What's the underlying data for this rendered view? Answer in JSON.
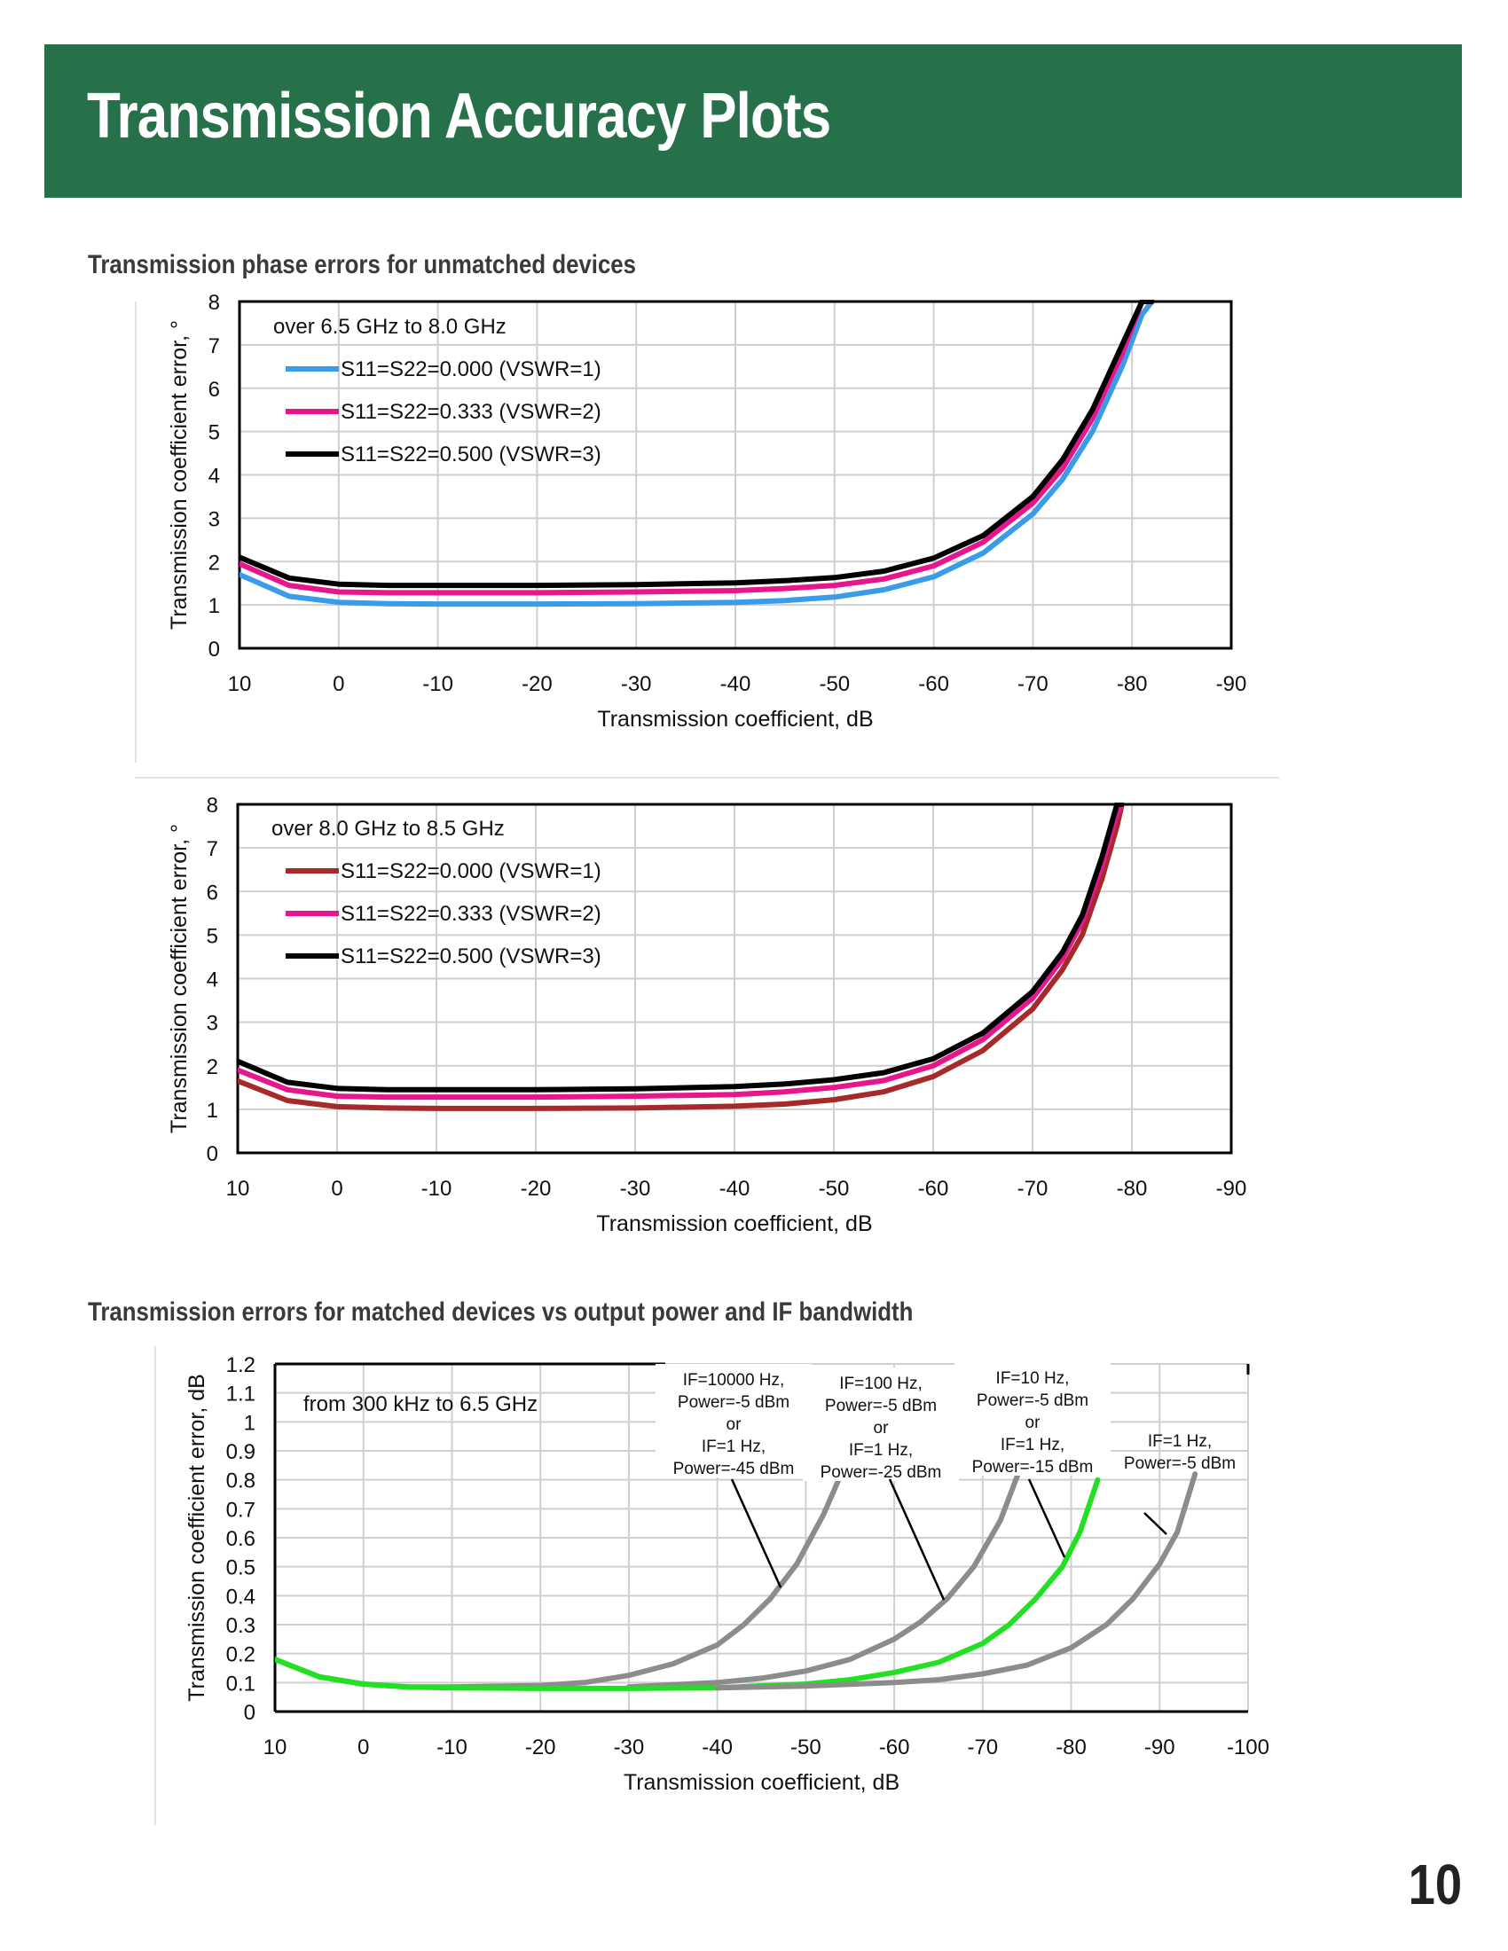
{
  "page": {
    "title": "Transmission Accuracy Plots",
    "page_number": "10",
    "section1_title": "Transmission phase errors for unmatched devices",
    "section2_title": "Transmission errors for matched devices vs output power and IF bandwidth"
  },
  "colors": {
    "header_green": "#26704a",
    "blue": "#3a9be8",
    "magenta": "#e8168c",
    "black": "#000000",
    "dark_red": "#a52a2a",
    "gray": "#8c8c8c",
    "green": "#22e022"
  },
  "chart_data": [
    {
      "type": "line",
      "annotation": "over 6.5 GHz to 8.0 GHz",
      "xlabel": "Transmission coefficient, dB",
      "ylabel": "Transmission coefficient error, °",
      "xlim": [
        10,
        -90
      ],
      "ylim": [
        0,
        8
      ],
      "xticks": [
        "10",
        "0",
        "-10",
        "-20",
        "-30",
        "-40",
        "-50",
        "-60",
        "-70",
        "-80",
        "-90"
      ],
      "yticks": [
        "0",
        "1",
        "2",
        "3",
        "4",
        "5",
        "6",
        "7",
        "8"
      ],
      "grid": true,
      "legend_position": "top-left",
      "x": [
        10,
        5,
        0,
        -5,
        -10,
        -20,
        -30,
        -40,
        -45,
        -50,
        -55,
        -60,
        -65,
        -70,
        -73,
        -76,
        -79,
        -81,
        -82
      ],
      "series": [
        {
          "name": "S11=S22=0.000 (VSWR=1)",
          "color": "#3a9be8",
          "values": [
            1.7,
            1.2,
            1.06,
            1.03,
            1.02,
            1.02,
            1.03,
            1.06,
            1.1,
            1.18,
            1.35,
            1.65,
            2.2,
            3.1,
            3.9,
            5.0,
            6.5,
            7.7,
            8.0
          ]
        },
        {
          "name": "S11=S22=0.333 (VSWR=2)",
          "color": "#e8168c",
          "values": [
            1.95,
            1.45,
            1.3,
            1.28,
            1.28,
            1.28,
            1.3,
            1.33,
            1.38,
            1.45,
            1.6,
            1.9,
            2.45,
            3.35,
            4.15,
            5.3,
            6.8,
            8.0,
            8.0
          ]
        },
        {
          "name": "S11=S22=0.500 (VSWR=3)",
          "color": "#000000",
          "values": [
            2.1,
            1.62,
            1.48,
            1.45,
            1.45,
            1.45,
            1.47,
            1.51,
            1.56,
            1.63,
            1.78,
            2.08,
            2.6,
            3.5,
            4.35,
            5.5,
            7.0,
            8.0,
            8.0
          ]
        }
      ]
    },
    {
      "type": "line",
      "annotation": "over 8.0 GHz to 8.5 GHz",
      "xlabel": "Transmission coefficient, dB",
      "ylabel": "Transmission coefficient error, °",
      "xlim": [
        10,
        -90
      ],
      "ylim": [
        0,
        8
      ],
      "xticks": [
        "10",
        "0",
        "-10",
        "-20",
        "-30",
        "-40",
        "-50",
        "-60",
        "-70",
        "-80",
        "-90"
      ],
      "yticks": [
        "0",
        "1",
        "2",
        "3",
        "4",
        "5",
        "6",
        "7",
        "8"
      ],
      "grid": true,
      "legend_position": "top-left",
      "x": [
        10,
        5,
        0,
        -5,
        -10,
        -20,
        -30,
        -40,
        -45,
        -50,
        -55,
        -60,
        -65,
        -70,
        -73,
        -75,
        -77,
        -78.5,
        -79
      ],
      "series": [
        {
          "name": "S11=S22=0.000 (VSWR=1)",
          "color": "#a52a2a",
          "values": [
            1.65,
            1.2,
            1.06,
            1.03,
            1.02,
            1.02,
            1.03,
            1.07,
            1.12,
            1.22,
            1.4,
            1.75,
            2.35,
            3.3,
            4.2,
            5.0,
            6.3,
            7.5,
            8.0
          ]
        },
        {
          "name": "S11=S22=0.333 (VSWR=2)",
          "color": "#e8168c",
          "values": [
            1.9,
            1.45,
            1.3,
            1.28,
            1.28,
            1.28,
            1.3,
            1.34,
            1.4,
            1.5,
            1.66,
            2.0,
            2.6,
            3.55,
            4.45,
            5.3,
            6.6,
            7.8,
            8.0
          ]
        },
        {
          "name": "S11=S22=0.500 (VSWR=3)",
          "color": "#000000",
          "values": [
            2.1,
            1.62,
            1.48,
            1.45,
            1.45,
            1.45,
            1.47,
            1.52,
            1.58,
            1.68,
            1.84,
            2.16,
            2.75,
            3.7,
            4.6,
            5.45,
            6.8,
            8.0,
            8.0
          ]
        }
      ]
    },
    {
      "type": "line",
      "annotation": "from 300 kHz to 6.5 GHz",
      "xlabel": "Transmission coefficient, dB",
      "ylabel": "Transmission coefficient error, dB",
      "xlim": [
        10,
        -100
      ],
      "ylim": [
        0,
        1.2
      ],
      "xticks": [
        "10",
        "0",
        "-10",
        "-20",
        "-30",
        "-40",
        "-50",
        "-60",
        "-70",
        "-80",
        "-90",
        "-100"
      ],
      "yticks": [
        "0",
        "0.1",
        "0.2",
        "0.3",
        "0.4",
        "0.5",
        "0.6",
        "0.7",
        "0.8",
        "0.9",
        "1",
        "1.1",
        "1.2"
      ],
      "grid": true,
      "series": [
        {
          "name": "",
          "color": "#8c8c8c",
          "x": [
            10,
            5,
            0,
            -5,
            -10,
            -20,
            -25,
            -30,
            -35,
            -40,
            -43,
            -46,
            -49,
            -52,
            -54
          ],
          "values": [
            0.18,
            0.12,
            0.095,
            0.085,
            0.085,
            0.09,
            0.1,
            0.125,
            0.165,
            0.23,
            0.3,
            0.39,
            0.51,
            0.68,
            0.82
          ]
        },
        {
          "name": "",
          "color": "#8c8c8c",
          "x": [
            -30,
            -40,
            -45,
            -50,
            -55,
            -60,
            -63,
            -66,
            -69,
            -72,
            -74
          ],
          "values": [
            0.085,
            0.1,
            0.115,
            0.14,
            0.18,
            0.25,
            0.31,
            0.39,
            0.5,
            0.66,
            0.82
          ]
        },
        {
          "name": "",
          "color": "#22e022",
          "x": [
            10,
            5,
            0,
            -5,
            -10,
            -20,
            -30,
            -40,
            -50,
            -55,
            -60,
            -65,
            -70,
            -73,
            -76,
            -79,
            -81,
            -83
          ],
          "values": [
            0.18,
            0.12,
            0.095,
            0.085,
            0.082,
            0.08,
            0.08,
            0.082,
            0.095,
            0.11,
            0.135,
            0.17,
            0.235,
            0.3,
            0.39,
            0.5,
            0.62,
            0.8
          ]
        },
        {
          "name": "",
          "color": "#8c8c8c",
          "x": [
            -40,
            -50,
            -60,
            -65,
            -70,
            -75,
            -80,
            -84,
            -87,
            -90,
            -92,
            -94
          ],
          "values": [
            0.082,
            0.088,
            0.1,
            0.11,
            0.13,
            0.16,
            0.22,
            0.3,
            0.39,
            0.51,
            0.62,
            0.82
          ]
        }
      ],
      "callouts": [
        {
          "text": [
            "IF=10000 Hz,",
            "Power=-5 dBm",
            "or",
            "IF=1 Hz,",
            "Power=-45 dBm"
          ]
        },
        {
          "text": [
            "IF=100 Hz,",
            "Power=-5 dBm",
            "or",
            "IF=1 Hz,",
            "Power=-25 dBm"
          ]
        },
        {
          "text": [
            "IF=10 Hz,",
            "Power=-5 dBm",
            "or",
            "IF=1 Hz,",
            "Power=-15 dBm"
          ]
        },
        {
          "text": [
            "IF=1 Hz,",
            "Power=-5 dBm"
          ]
        }
      ]
    }
  ]
}
